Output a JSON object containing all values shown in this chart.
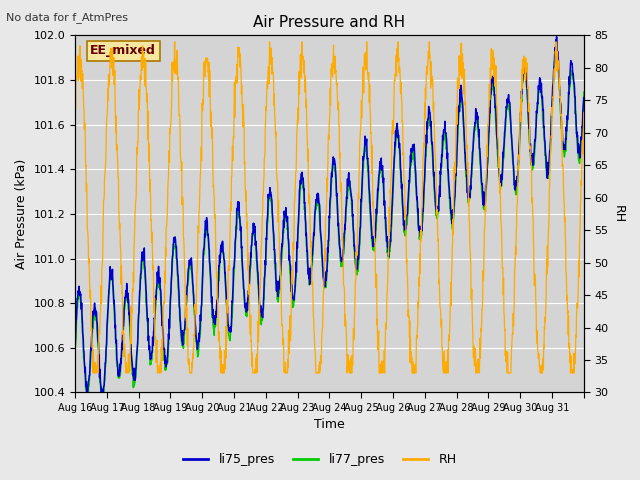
{
  "title": "Air Pressure and RH",
  "top_left_note": "No data for f_AtmPres",
  "box_label": "EE_mixed",
  "xlabel": "Time",
  "ylabel_left": "Air Pressure (kPa)",
  "ylabel_right": "RH",
  "ylim_left": [
    100.4,
    102.0
  ],
  "ylim_right": [
    30,
    85
  ],
  "yticks_left": [
    100.4,
    100.6,
    100.8,
    101.0,
    101.2,
    101.4,
    101.6,
    101.8,
    102.0
  ],
  "yticks_right": [
    30,
    35,
    40,
    45,
    50,
    55,
    60,
    65,
    70,
    75,
    80,
    85
  ],
  "xtick_positions": [
    0,
    1,
    2,
    3,
    4,
    5,
    6,
    7,
    8,
    9,
    10,
    11,
    12,
    13,
    14,
    15,
    16
  ],
  "xtick_labels": [
    "Aug 16",
    "Aug 17",
    "Aug 18",
    "Aug 19",
    "Aug 20",
    "Aug 21",
    "Aug 22",
    "Aug 23",
    "Aug 24",
    "Aug 25",
    "Aug 26",
    "Aug 27",
    "Aug 28",
    "Aug 29",
    "Aug 30",
    "Aug 31",
    ""
  ],
  "color_li75": "#0000cc",
  "color_li77": "#00cc00",
  "color_rh": "#ffaa00",
  "bg_color": "#e8e8e8",
  "plot_bg_color": "#d4d4d4",
  "grid_color": "#ffffff",
  "legend_labels": [
    "li75_pres",
    "li77_pres",
    "RH"
  ],
  "n_days": 16
}
